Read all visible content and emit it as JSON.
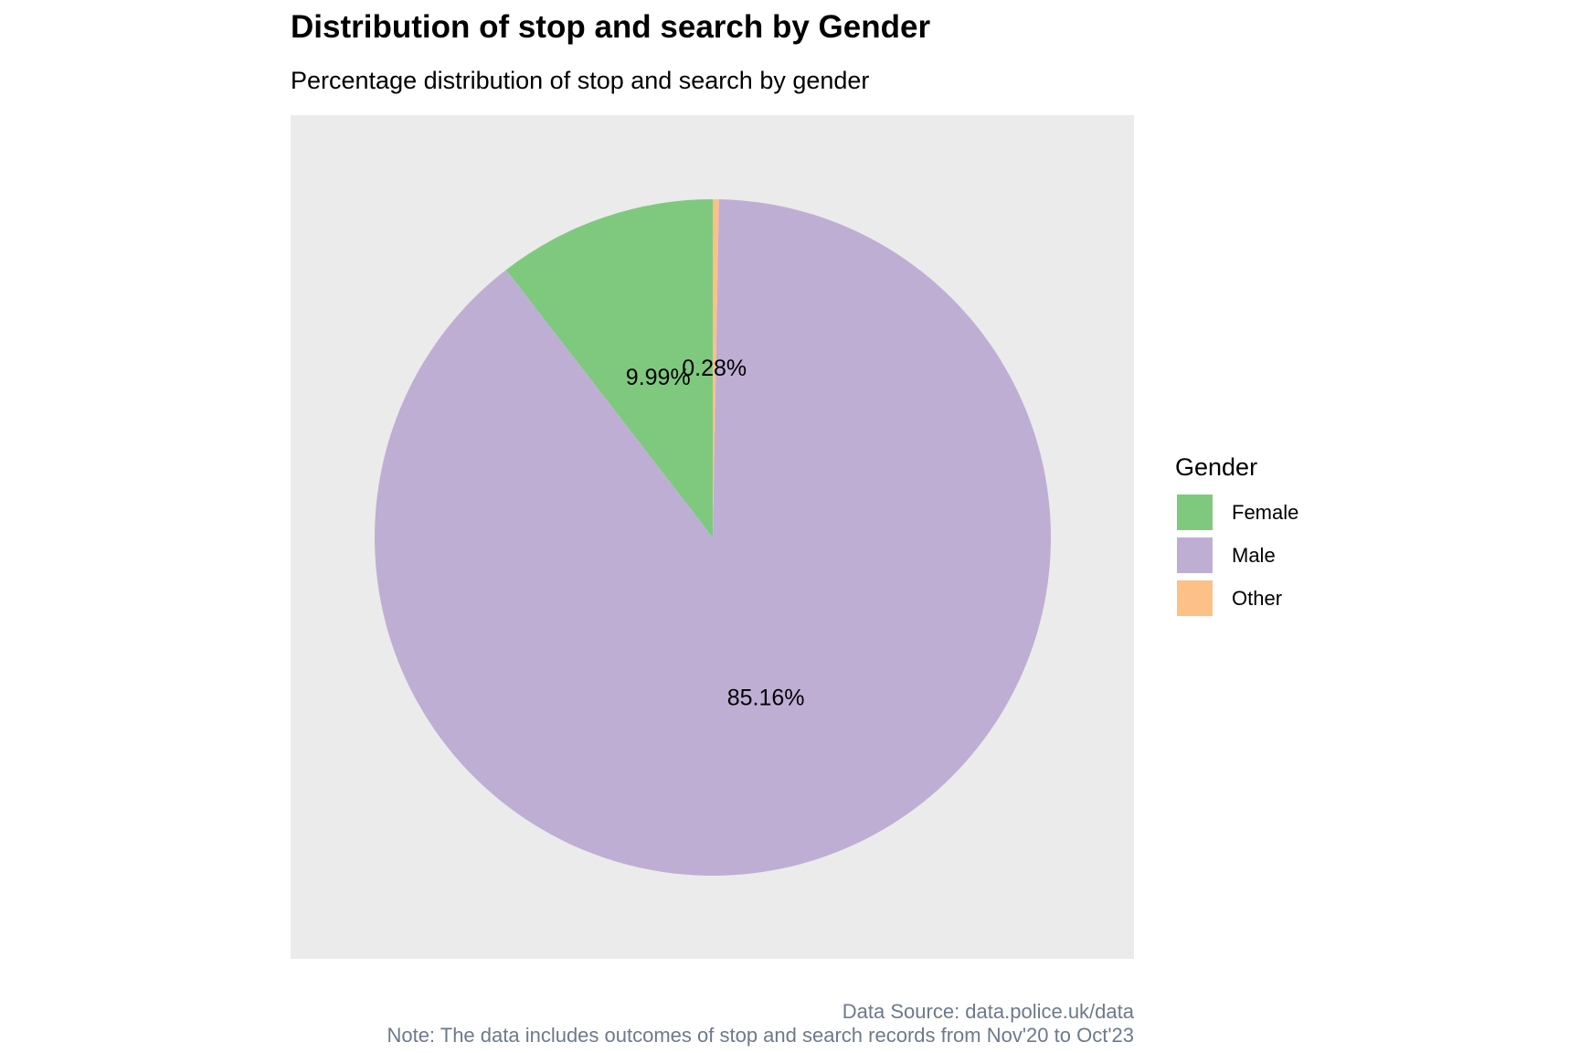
{
  "chart_data": {
    "type": "pie",
    "title": "Distribution of stop and search by Gender",
    "subtitle": "Percentage distribution of stop and search by gender",
    "legend_title": "Gender",
    "legend_position": "right",
    "categories": [
      "Female",
      "Male",
      "Other"
    ],
    "values": [
      9.99,
      85.16,
      0.28
    ],
    "labels": [
      "9.99%",
      "85.16%",
      "0.28%"
    ],
    "colors": [
      "#7fc97f",
      "#beaed4",
      "#fdc086"
    ],
    "panel_background": "#ebebeb",
    "caption": [
      "Data Source: data.police.uk/data",
      "Note: The data includes outcomes of stop and search records from Nov'20 to Oct'23"
    ]
  }
}
